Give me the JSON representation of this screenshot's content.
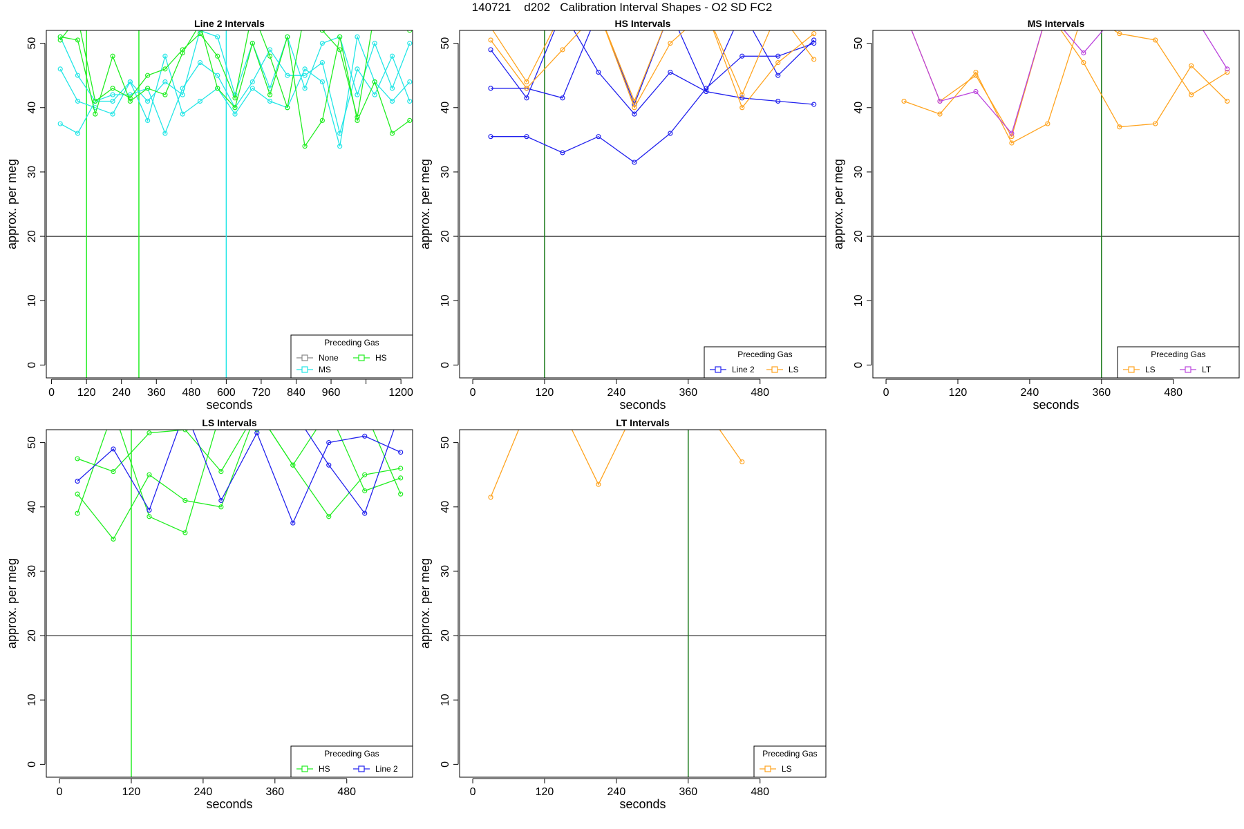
{
  "main_title": "140721    d202   Calibration Interval Shapes - O2 SD FC2",
  "colors": {
    "None": "#888888",
    "HS": "#22ee22",
    "MS": "#22e6e6",
    "Line 2": "#2222ee",
    "LS": "#ffa420",
    "LT": "#bb44dd",
    "hline": "#000000",
    "vline_dark": "#1a7a1a"
  },
  "chart_data": [
    {
      "type": "line",
      "title": "Line 2 Intervals",
      "xlabel": "seconds",
      "ylabel": "approx. per meg",
      "xlim": [
        -18,
        1240
      ],
      "ylim": [
        -2,
        52
      ],
      "xticks": [
        0,
        120,
        240,
        360,
        480,
        600,
        720,
        840,
        960,
        1080,
        1200
      ],
      "xtick_labels": [
        "0",
        "120",
        "240",
        "360",
        "480",
        "600",
        "720",
        "840",
        "960",
        "",
        "1200"
      ],
      "yticks": [
        0,
        10,
        20,
        30,
        40,
        50
      ],
      "hline": 20,
      "vlines": [
        {
          "x": 120,
          "color": "HS"
        },
        {
          "x": 300,
          "color": "HS"
        },
        {
          "x": 600,
          "color": "MS"
        }
      ],
      "legend": {
        "title": "Preceding Gas",
        "position": "bottom-right",
        "columns": 2,
        "entries": [
          "None",
          "HS",
          "MS"
        ]
      },
      "series": [
        {
          "name": "MS",
          "x": [
            30,
            90,
            150,
            210,
            270,
            330,
            390,
            450,
            510,
            570,
            630,
            690,
            750,
            810,
            870,
            930,
            990,
            1050,
            1110,
            1170,
            1230
          ],
          "y": [
            46,
            41,
            40,
            39,
            44,
            38,
            48,
            39,
            41,
            43,
            39,
            43,
            41,
            40,
            46,
            44,
            34,
            51,
            44,
            41,
            44
          ]
        },
        {
          "name": "MS",
          "x": [
            30,
            90,
            150,
            210,
            270,
            330,
            390,
            450,
            510,
            570,
            630,
            690,
            750,
            810,
            870,
            930,
            990,
            1050,
            1110,
            1170,
            1230
          ],
          "y": [
            37.5,
            36,
            41,
            42,
            42,
            43,
            36,
            43,
            47,
            45,
            40,
            44,
            49,
            45,
            45,
            47,
            36,
            46,
            42,
            48,
            41
          ]
        },
        {
          "name": "MS",
          "x": [
            30,
            90,
            150,
            210,
            270,
            330,
            390,
            450,
            510,
            570,
            630,
            690,
            750,
            810,
            870,
            930,
            990,
            1050,
            1110,
            1170,
            1230
          ],
          "y": [
            51,
            45,
            41,
            41,
            44,
            41,
            44,
            42,
            52,
            51,
            42,
            50,
            43,
            51,
            43,
            50,
            51,
            42,
            50,
            43,
            50
          ]
        },
        {
          "name": "HS",
          "x": [
            30,
            90,
            150,
            210,
            270,
            330,
            390,
            450,
            510,
            570,
            630,
            690,
            750,
            810,
            870,
            930,
            990,
            1050,
            1110,
            1170,
            1230
          ],
          "y": [
            51,
            50.5,
            39,
            48,
            41,
            43,
            42,
            48.5,
            53,
            43,
            40,
            50,
            42,
            51,
            34,
            38,
            51,
            38,
            44,
            36,
            38
          ]
        },
        {
          "name": "HS",
          "x": [
            30,
            90,
            150,
            210,
            270,
            330,
            390,
            450,
            510,
            570,
            630,
            690,
            750,
            810,
            870,
            930,
            990,
            1050,
            1110,
            1170,
            1230
          ],
          "y": [
            50.5,
            54,
            41,
            43,
            41.5,
            45,
            46,
            49,
            51.5,
            48,
            41.5,
            55,
            48,
            40,
            55,
            52,
            49,
            38.5,
            55,
            53,
            52
          ]
        }
      ]
    },
    {
      "type": "line",
      "title": "HS Intervals",
      "xlabel": "seconds",
      "ylabel": "approx. per meg",
      "xlim": [
        -22,
        590
      ],
      "ylim": [
        -2,
        52
      ],
      "xticks": [
        0,
        120,
        240,
        360,
        480
      ],
      "xtick_labels": [
        "0",
        "120",
        "240",
        "360",
        "480"
      ],
      "yticks": [
        0,
        10,
        20,
        30,
        40,
        50
      ],
      "hline": 20,
      "vlines": [
        {
          "x": 120,
          "color": "vline_dark"
        }
      ],
      "legend": {
        "title": "Preceding Gas",
        "position": "bottom-right",
        "columns": 2,
        "entries": [
          "Line 2",
          "LS"
        ]
      },
      "series": [
        {
          "name": "Line 2",
          "x": [
            30,
            90,
            150,
            210,
            270,
            330,
            390,
            450,
            510,
            570
          ],
          "y": [
            35.5,
            35.5,
            33,
            35.5,
            31.5,
            36,
            43,
            48,
            48,
            50
          ]
        },
        {
          "name": "Line 2",
          "x": [
            30,
            90,
            150,
            210,
            270,
            330,
            390,
            450,
            510,
            570
          ],
          "y": [
            43,
            43,
            41.5,
            55,
            40.5,
            55,
            42.5,
            41.5,
            41,
            40.5
          ]
        },
        {
          "name": "Line 2",
          "x": [
            30,
            90,
            150,
            210,
            270,
            330,
            390,
            450,
            510,
            570
          ],
          "y": [
            49,
            41.5,
            55,
            45.5,
            39,
            45.5,
            42.5,
            55,
            45,
            50.5
          ]
        },
        {
          "name": "LS",
          "x": [
            30,
            90,
            150,
            210,
            270,
            330,
            390,
            450,
            510,
            570
          ],
          "y": [
            50.5,
            43,
            49,
            55,
            40,
            50,
            55,
            40,
            47,
            51.5
          ]
        },
        {
          "name": "LS",
          "x": [
            30,
            90,
            150,
            210,
            270,
            330,
            390,
            450,
            510,
            570
          ],
          "y": [
            52.5,
            44,
            55,
            55,
            41,
            55,
            55,
            42,
            55,
            47.5
          ]
        }
      ]
    },
    {
      "type": "line",
      "title": "MS Intervals",
      "xlabel": "seconds",
      "ylabel": "approx. per meg",
      "xlim": [
        -22,
        590
      ],
      "ylim": [
        -2,
        52
      ],
      "xticks": [
        0,
        120,
        240,
        360,
        480
      ],
      "xtick_labels": [
        "0",
        "120",
        "240",
        "360",
        "480"
      ],
      "yticks": [
        0,
        10,
        20,
        30,
        40,
        50
      ],
      "hline": 20,
      "vlines": [
        {
          "x": 360,
          "color": "vline_dark"
        }
      ],
      "legend": {
        "title": "Preceding Gas",
        "position": "bottom-right",
        "columns": 2,
        "entries": [
          "LS",
          "LT"
        ]
      },
      "series": [
        {
          "name": "LS",
          "x": [
            30,
            90,
            150,
            210,
            270,
            330,
            390,
            450,
            510,
            570
          ],
          "y": [
            41,
            39,
            45.5,
            34.5,
            37.5,
            55,
            51.5,
            50.5,
            42,
            45.5
          ]
        },
        {
          "name": "LS",
          "x": [
            30,
            90,
            150,
            210,
            270,
            330,
            390,
            450,
            510,
            570
          ],
          "y": [
            55,
            41,
            45,
            35.5,
            55,
            47,
            37,
            37.5,
            46.5,
            41
          ]
        },
        {
          "name": "LT",
          "x": [
            30,
            90,
            150,
            210,
            270,
            330,
            390,
            450,
            510,
            570
          ],
          "y": [
            55,
            41,
            42.5,
            36,
            55,
            48.5,
            55,
            55,
            55,
            46
          ]
        }
      ]
    },
    {
      "type": "line",
      "title": "LS Intervals",
      "xlabel": "seconds",
      "ylabel": "approx. per meg",
      "xlim": [
        -22,
        590
      ],
      "ylim": [
        -2,
        52
      ],
      "xticks": [
        0,
        120,
        240,
        360,
        480
      ],
      "xtick_labels": [
        "0",
        "120",
        "240",
        "360",
        "480"
      ],
      "yticks": [
        0,
        10,
        20,
        30,
        40,
        50
      ],
      "hline": 20,
      "vlines": [
        {
          "x": 120,
          "color": "HS"
        }
      ],
      "legend": {
        "title": "Preceding Gas",
        "position": "bottom-right",
        "columns": 2,
        "entries": [
          "HS",
          "Line 2"
        ]
      },
      "series": [
        {
          "name": "HS",
          "x": [
            30,
            90,
            150,
            210,
            270,
            330,
            390,
            450,
            510,
            570
          ],
          "y": [
            47.5,
            45.5,
            51.5,
            52,
            45.5,
            55,
            46.5,
            38.5,
            45,
            46
          ]
        },
        {
          "name": "HS",
          "x": [
            30,
            90,
            150,
            210,
            270,
            330,
            390,
            450,
            510,
            570
          ],
          "y": [
            42,
            35,
            45,
            41,
            40,
            55,
            46.5,
            55,
            42.5,
            44.5
          ]
        },
        {
          "name": "HS",
          "x": [
            30,
            90,
            150,
            210,
            270,
            330,
            390,
            450,
            510,
            570
          ],
          "y": [
            39,
            55,
            38.5,
            36,
            55,
            52,
            55,
            55,
            55,
            42
          ]
        },
        {
          "name": "Line 2",
          "x": [
            30,
            90,
            150,
            210,
            270,
            330,
            390,
            450,
            510,
            570
          ],
          "y": [
            44,
            49,
            39.5,
            55,
            41,
            51.5,
            37.5,
            50,
            51,
            48.5
          ]
        },
        {
          "name": "Line 2",
          "x": [
            30,
            90,
            150,
            210,
            270,
            330,
            390,
            450,
            510,
            570
          ],
          "y": [
            55,
            55,
            55,
            55,
            55,
            55,
            55,
            46.5,
            39,
            55
          ]
        }
      ]
    },
    {
      "type": "line",
      "title": "LT Intervals",
      "xlabel": "seconds",
      "ylabel": "approx. per meg",
      "xlim": [
        -22,
        590
      ],
      "ylim": [
        -2,
        52
      ],
      "xticks": [
        0,
        120,
        240,
        360,
        480
      ],
      "xtick_labels": [
        "0",
        "120",
        "240",
        "360",
        "480"
      ],
      "yticks": [
        0,
        10,
        20,
        30,
        40,
        50
      ],
      "hline": 20,
      "vlines": [
        {
          "x": 360,
          "color": "vline_dark"
        }
      ],
      "legend": {
        "title": "Preceding Gas",
        "position": "bottom-right",
        "columns": 1,
        "entries": [
          "LS"
        ]
      },
      "series": [
        {
          "name": "LS",
          "x": [
            30,
            90,
            150,
            210,
            270,
            330,
            390,
            450
          ],
          "y": [
            41.5,
            55,
            55,
            43.5,
            55,
            55,
            55,
            47
          ]
        }
      ]
    }
  ]
}
